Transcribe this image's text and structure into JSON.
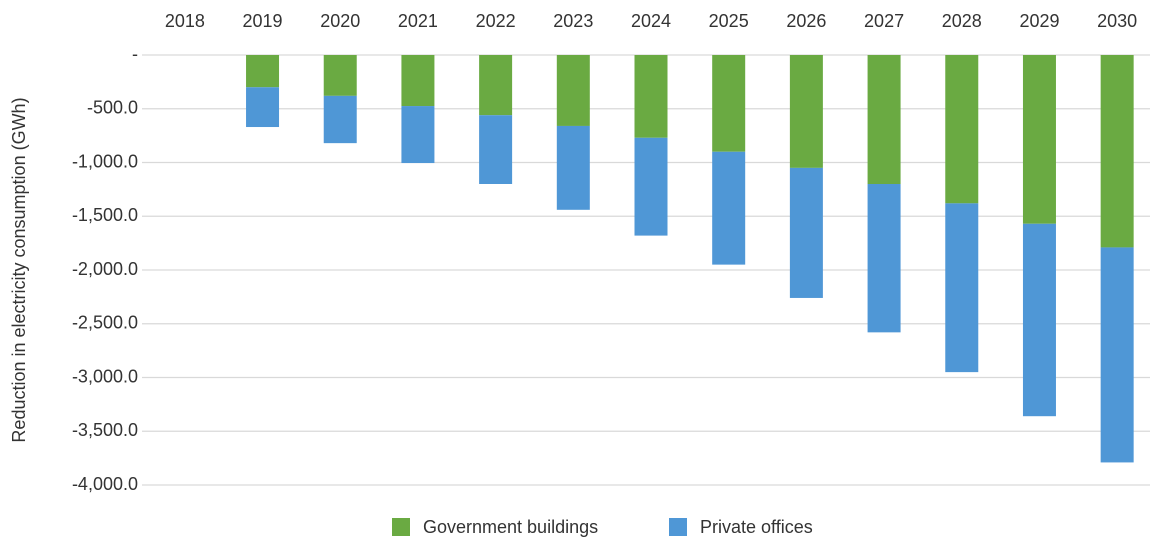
{
  "chart_data": {
    "type": "stacked_bar",
    "y_axis_label": "Reduction in electricity consumption (GWh)",
    "categories": [
      "2018",
      "2019",
      "2020",
      "2021",
      "2022",
      "2023",
      "2024",
      "2025",
      "2026",
      "2027",
      "2028",
      "2029",
      "2030"
    ],
    "series": [
      {
        "name": "Government buildings",
        "color": "#6aaa42",
        "values": [
          0,
          -300,
          -380,
          -475,
          -560,
          -660,
          -770,
          -900,
          -1050,
          -1200,
          -1380,
          -1570,
          -1790
        ]
      },
      {
        "name": "Private offices",
        "color": "#4f97d6",
        "values": [
          0,
          -370,
          -440,
          -530,
          -640,
          -780,
          -910,
          -1050,
          -1210,
          -1380,
          -1570,
          -1790,
          -2000
        ]
      }
    ],
    "ylim": [
      -4000,
      0
    ],
    "yticks": [
      {
        "value": 0,
        "label": "-"
      },
      {
        "value": -500,
        "label": "-500.0"
      },
      {
        "value": -1000,
        "label": "-1,000.0"
      },
      {
        "value": -1500,
        "label": "-1,500.0"
      },
      {
        "value": -2000,
        "label": "-2,000.0"
      },
      {
        "value": -2500,
        "label": "-2,500.0"
      },
      {
        "value": -3000,
        "label": "-3,000.0"
      },
      {
        "value": -3500,
        "label": "-3,500.0"
      },
      {
        "value": -4000,
        "label": "-4,000.0"
      }
    ],
    "grid": true,
    "legend": "bottom"
  }
}
